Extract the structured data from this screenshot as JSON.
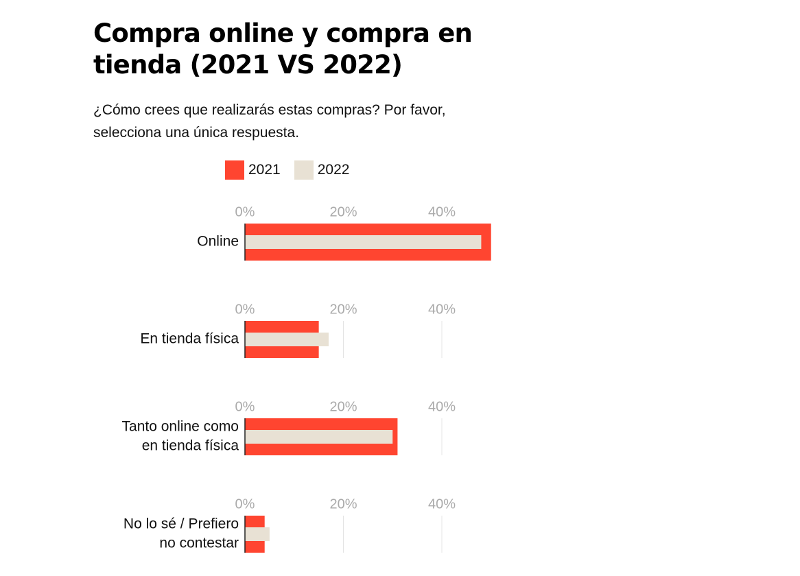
{
  "title": "Compra online y compra en tienda (2021 VS 2022)",
  "subtitle": "¿Cómo crees que realizarás estas compras? Por favor, selecciona una única respuesta.",
  "legend": [
    {
      "label": "2021",
      "color": "#ff4530"
    },
    {
      "label": "2022",
      "color": "#e8e1d4"
    }
  ],
  "chart_data": {
    "type": "bar",
    "orientation": "horizontal",
    "small_multiples": true,
    "title": "Compra online y compra en tienda (2021 VS 2022)",
    "subtitle": "¿Cómo crees que realizarás estas compras? Por favor, selecciona una única respuesta.",
    "categories": [
      [
        "Online"
      ],
      [
        "En tienda física"
      ],
      [
        "Tanto online como",
        "en tienda física"
      ],
      [
        "No lo sé / Prefiero",
        "no contestar"
      ]
    ],
    "series": [
      {
        "name": "2021",
        "color": "#ff4530",
        "values": [
          50,
          15,
          31,
          4
        ]
      },
      {
        "name": "2022",
        "color": "#e8e1d4",
        "values": [
          48,
          17,
          30,
          5
        ]
      }
    ],
    "xlim": [
      0,
      50
    ],
    "xticks": [
      0,
      20,
      40
    ],
    "xtick_labels": [
      "0%",
      "20%",
      "40%"
    ],
    "unit": "%",
    "grid": true,
    "legend_position": "top"
  }
}
